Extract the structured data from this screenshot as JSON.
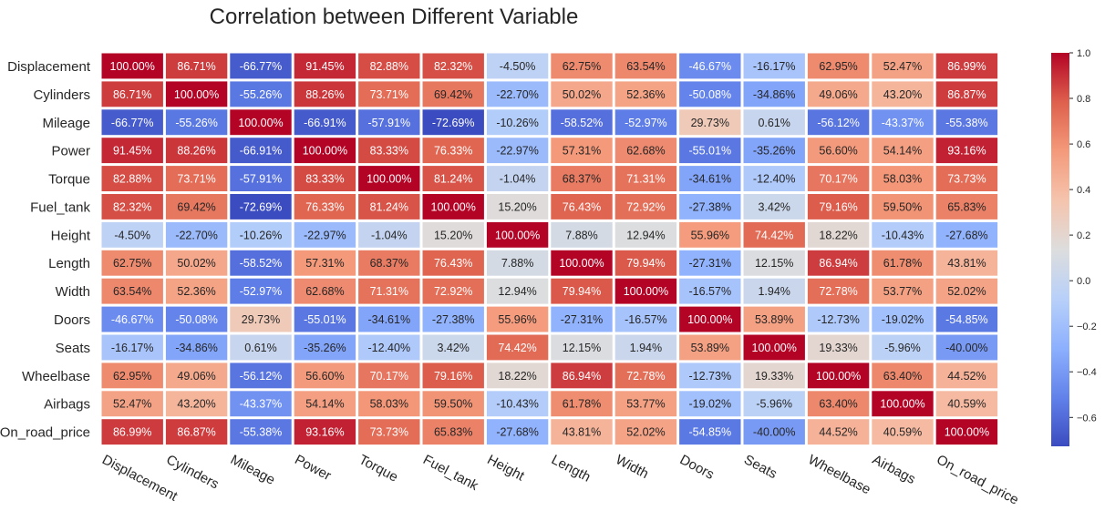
{
  "chart_data": {
    "type": "heatmap",
    "title": "Correlation between Different Variable",
    "rows": [
      "Displacement",
      "Cylinders",
      "Mileage",
      "Power",
      "Torque",
      "Fuel_tank",
      "Height",
      "Length",
      "Width",
      "Doors",
      "Seats",
      "Wheelbase",
      "Airbags",
      "On_road_price"
    ],
    "cols": [
      "Displacement",
      "Cylinders",
      "Mileage",
      "Power",
      "Torque",
      "Fuel_tank",
      "Height",
      "Length",
      "Width",
      "Doors",
      "Seats",
      "Wheelbase",
      "Airbags",
      "On_road_price"
    ],
    "values": [
      [
        100.0,
        86.71,
        -66.77,
        91.45,
        82.88,
        82.32,
        -4.5,
        62.75,
        63.54,
        -46.67,
        -16.17,
        62.95,
        52.47,
        86.99
      ],
      [
        86.71,
        100.0,
        -55.26,
        88.26,
        73.71,
        69.42,
        -22.7,
        50.02,
        52.36,
        -50.08,
        -34.86,
        49.06,
        43.2,
        86.87
      ],
      [
        -66.77,
        -55.26,
        100.0,
        -66.91,
        -57.91,
        -72.69,
        -10.26,
        -58.52,
        -52.97,
        29.73,
        0.61,
        -56.12,
        -43.37,
        -55.38
      ],
      [
        91.45,
        88.26,
        -66.91,
        100.0,
        83.33,
        76.33,
        -22.97,
        57.31,
        62.68,
        -55.01,
        -35.26,
        56.6,
        54.14,
        93.16
      ],
      [
        82.88,
        73.71,
        -57.91,
        83.33,
        100.0,
        81.24,
        -1.04,
        68.37,
        71.31,
        -34.61,
        -12.4,
        70.17,
        58.03,
        73.73
      ],
      [
        82.32,
        69.42,
        -72.69,
        76.33,
        81.24,
        100.0,
        15.2,
        76.43,
        72.92,
        -27.38,
        3.42,
        79.16,
        59.5,
        65.83
      ],
      [
        -4.5,
        -22.7,
        -10.26,
        -22.97,
        -1.04,
        15.2,
        100.0,
        7.88,
        12.94,
        55.96,
        74.42,
        18.22,
        -10.43,
        -27.68
      ],
      [
        62.75,
        50.02,
        -58.52,
        57.31,
        68.37,
        76.43,
        7.88,
        100.0,
        79.94,
        -27.31,
        12.15,
        86.94,
        61.78,
        43.81
      ],
      [
        63.54,
        52.36,
        -52.97,
        62.68,
        71.31,
        72.92,
        12.94,
        79.94,
        100.0,
        -16.57,
        1.94,
        72.78,
        53.77,
        52.02
      ],
      [
        -46.67,
        -50.08,
        29.73,
        -55.01,
        -34.61,
        -27.38,
        55.96,
        -27.31,
        -16.57,
        100.0,
        53.89,
        -12.73,
        -19.02,
        -54.85
      ],
      [
        -16.17,
        -34.86,
        0.61,
        -35.26,
        -12.4,
        3.42,
        74.42,
        12.15,
        1.94,
        53.89,
        100.0,
        19.33,
        -5.96,
        -40.0
      ],
      [
        62.95,
        49.06,
        -56.12,
        56.6,
        70.17,
        79.16,
        18.22,
        86.94,
        72.78,
        -12.73,
        19.33,
        100.0,
        63.4,
        44.52
      ],
      [
        52.47,
        43.2,
        -43.37,
        54.14,
        58.03,
        59.5,
        -10.43,
        61.78,
        53.77,
        -19.02,
        -5.96,
        63.4,
        100.0,
        40.59
      ],
      [
        86.99,
        86.87,
        -55.38,
        93.16,
        73.73,
        65.83,
        -27.68,
        43.81,
        52.02,
        -54.85,
        -40.0,
        44.52,
        40.59,
        100.0
      ]
    ],
    "value_format": "percent, 2 decimals",
    "colormap": "coolwarm",
    "color_range": [
      -0.7269,
      1.0
    ],
    "colorbar": {
      "ticks": [
        1.0,
        0.8,
        0.6,
        0.4,
        0.2,
        0.0,
        -0.2,
        -0.4,
        -0.6
      ],
      "tick_labels": [
        "1.0",
        "0.8",
        "0.6",
        "0.4",
        "0.2",
        "0.0",
        "−0.2",
        "−0.4",
        "−0.6"
      ]
    },
    "xlabel": "",
    "ylabel": "",
    "colors": {
      "cold": "#3b4cc0",
      "neutral": "#dddddd",
      "hot": "#b40426",
      "cell_border": "#ffffff"
    }
  }
}
